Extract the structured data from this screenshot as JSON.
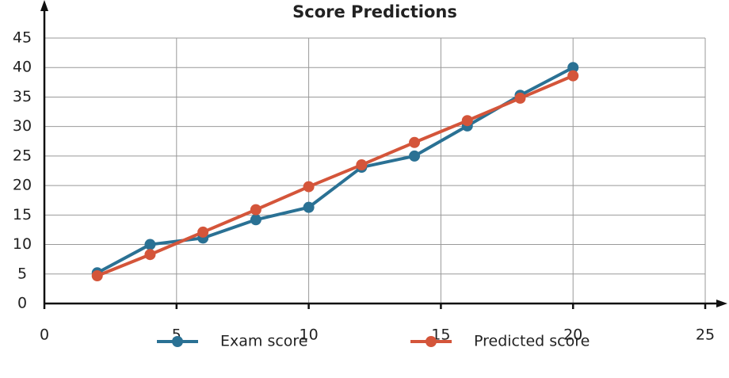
{
  "chart_data": {
    "type": "line",
    "title": "Score Predictions",
    "xlim": [
      0,
      25
    ],
    "xticks": [
      0,
      5,
      10,
      15,
      20,
      25
    ],
    "ylim": [
      0,
      45
    ],
    "yticks": [
      0,
      5,
      10,
      15,
      20,
      25,
      30,
      35,
      40,
      45
    ],
    "grid": true,
    "legend": "bottom",
    "x": [
      2,
      4,
      6,
      8,
      10,
      12,
      14,
      16,
      18,
      20
    ],
    "series": [
      {
        "name": "Exam score",
        "color": "#2a7194",
        "values": [
          5.2,
          10,
          11.1,
          14.2,
          16.3,
          23.1,
          25,
          30.1,
          35.3,
          40
        ]
      },
      {
        "name": "Predicted score",
        "color": "#d4553a",
        "values": [
          4.7,
          8.3,
          12.1,
          15.9,
          19.8,
          23.5,
          27.3,
          31,
          34.8,
          38.6
        ]
      }
    ]
  }
}
